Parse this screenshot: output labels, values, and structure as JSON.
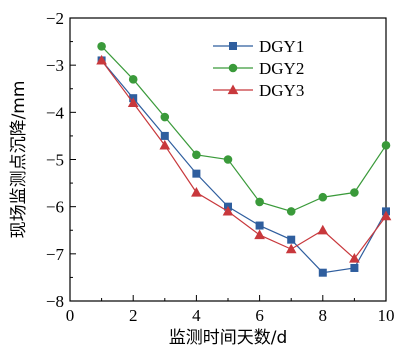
{
  "chart_data": {
    "type": "line",
    "xlabel": "监测时间天数/d",
    "ylabel": "现场监测点沉降/mm",
    "xlim": [
      0,
      10
    ],
    "ylim": [
      -8,
      -2
    ],
    "xticks": [
      0,
      2,
      4,
      6,
      8,
      10
    ],
    "yticks": [
      -2,
      -3,
      -4,
      -5,
      -6,
      -7,
      -8
    ],
    "grid": false,
    "legend_position": "top-right",
    "x": [
      1,
      2,
      3,
      4,
      5,
      6,
      7,
      8,
      9,
      10
    ],
    "series": [
      {
        "name": "DGY1",
        "color": "#2f5e9e",
        "marker": "square",
        "values": [
          -2.9,
          -3.7,
          -4.5,
          -5.3,
          -6.0,
          -6.4,
          -6.7,
          -7.4,
          -7.3,
          -6.1
        ]
      },
      {
        "name": "DGY2",
        "color": "#3a9a3a",
        "marker": "circle",
        "values": [
          -2.6,
          -3.3,
          -4.1,
          -4.9,
          -5.0,
          -5.9,
          -6.1,
          -5.8,
          -5.7,
          -4.7
        ]
      },
      {
        "name": "DGY3",
        "color": "#c8383c",
        "marker": "triangle",
        "values": [
          -2.9,
          -3.8,
          -4.7,
          -5.7,
          -6.1,
          -6.6,
          -6.9,
          -6.5,
          -7.1,
          -6.2
        ]
      }
    ]
  }
}
